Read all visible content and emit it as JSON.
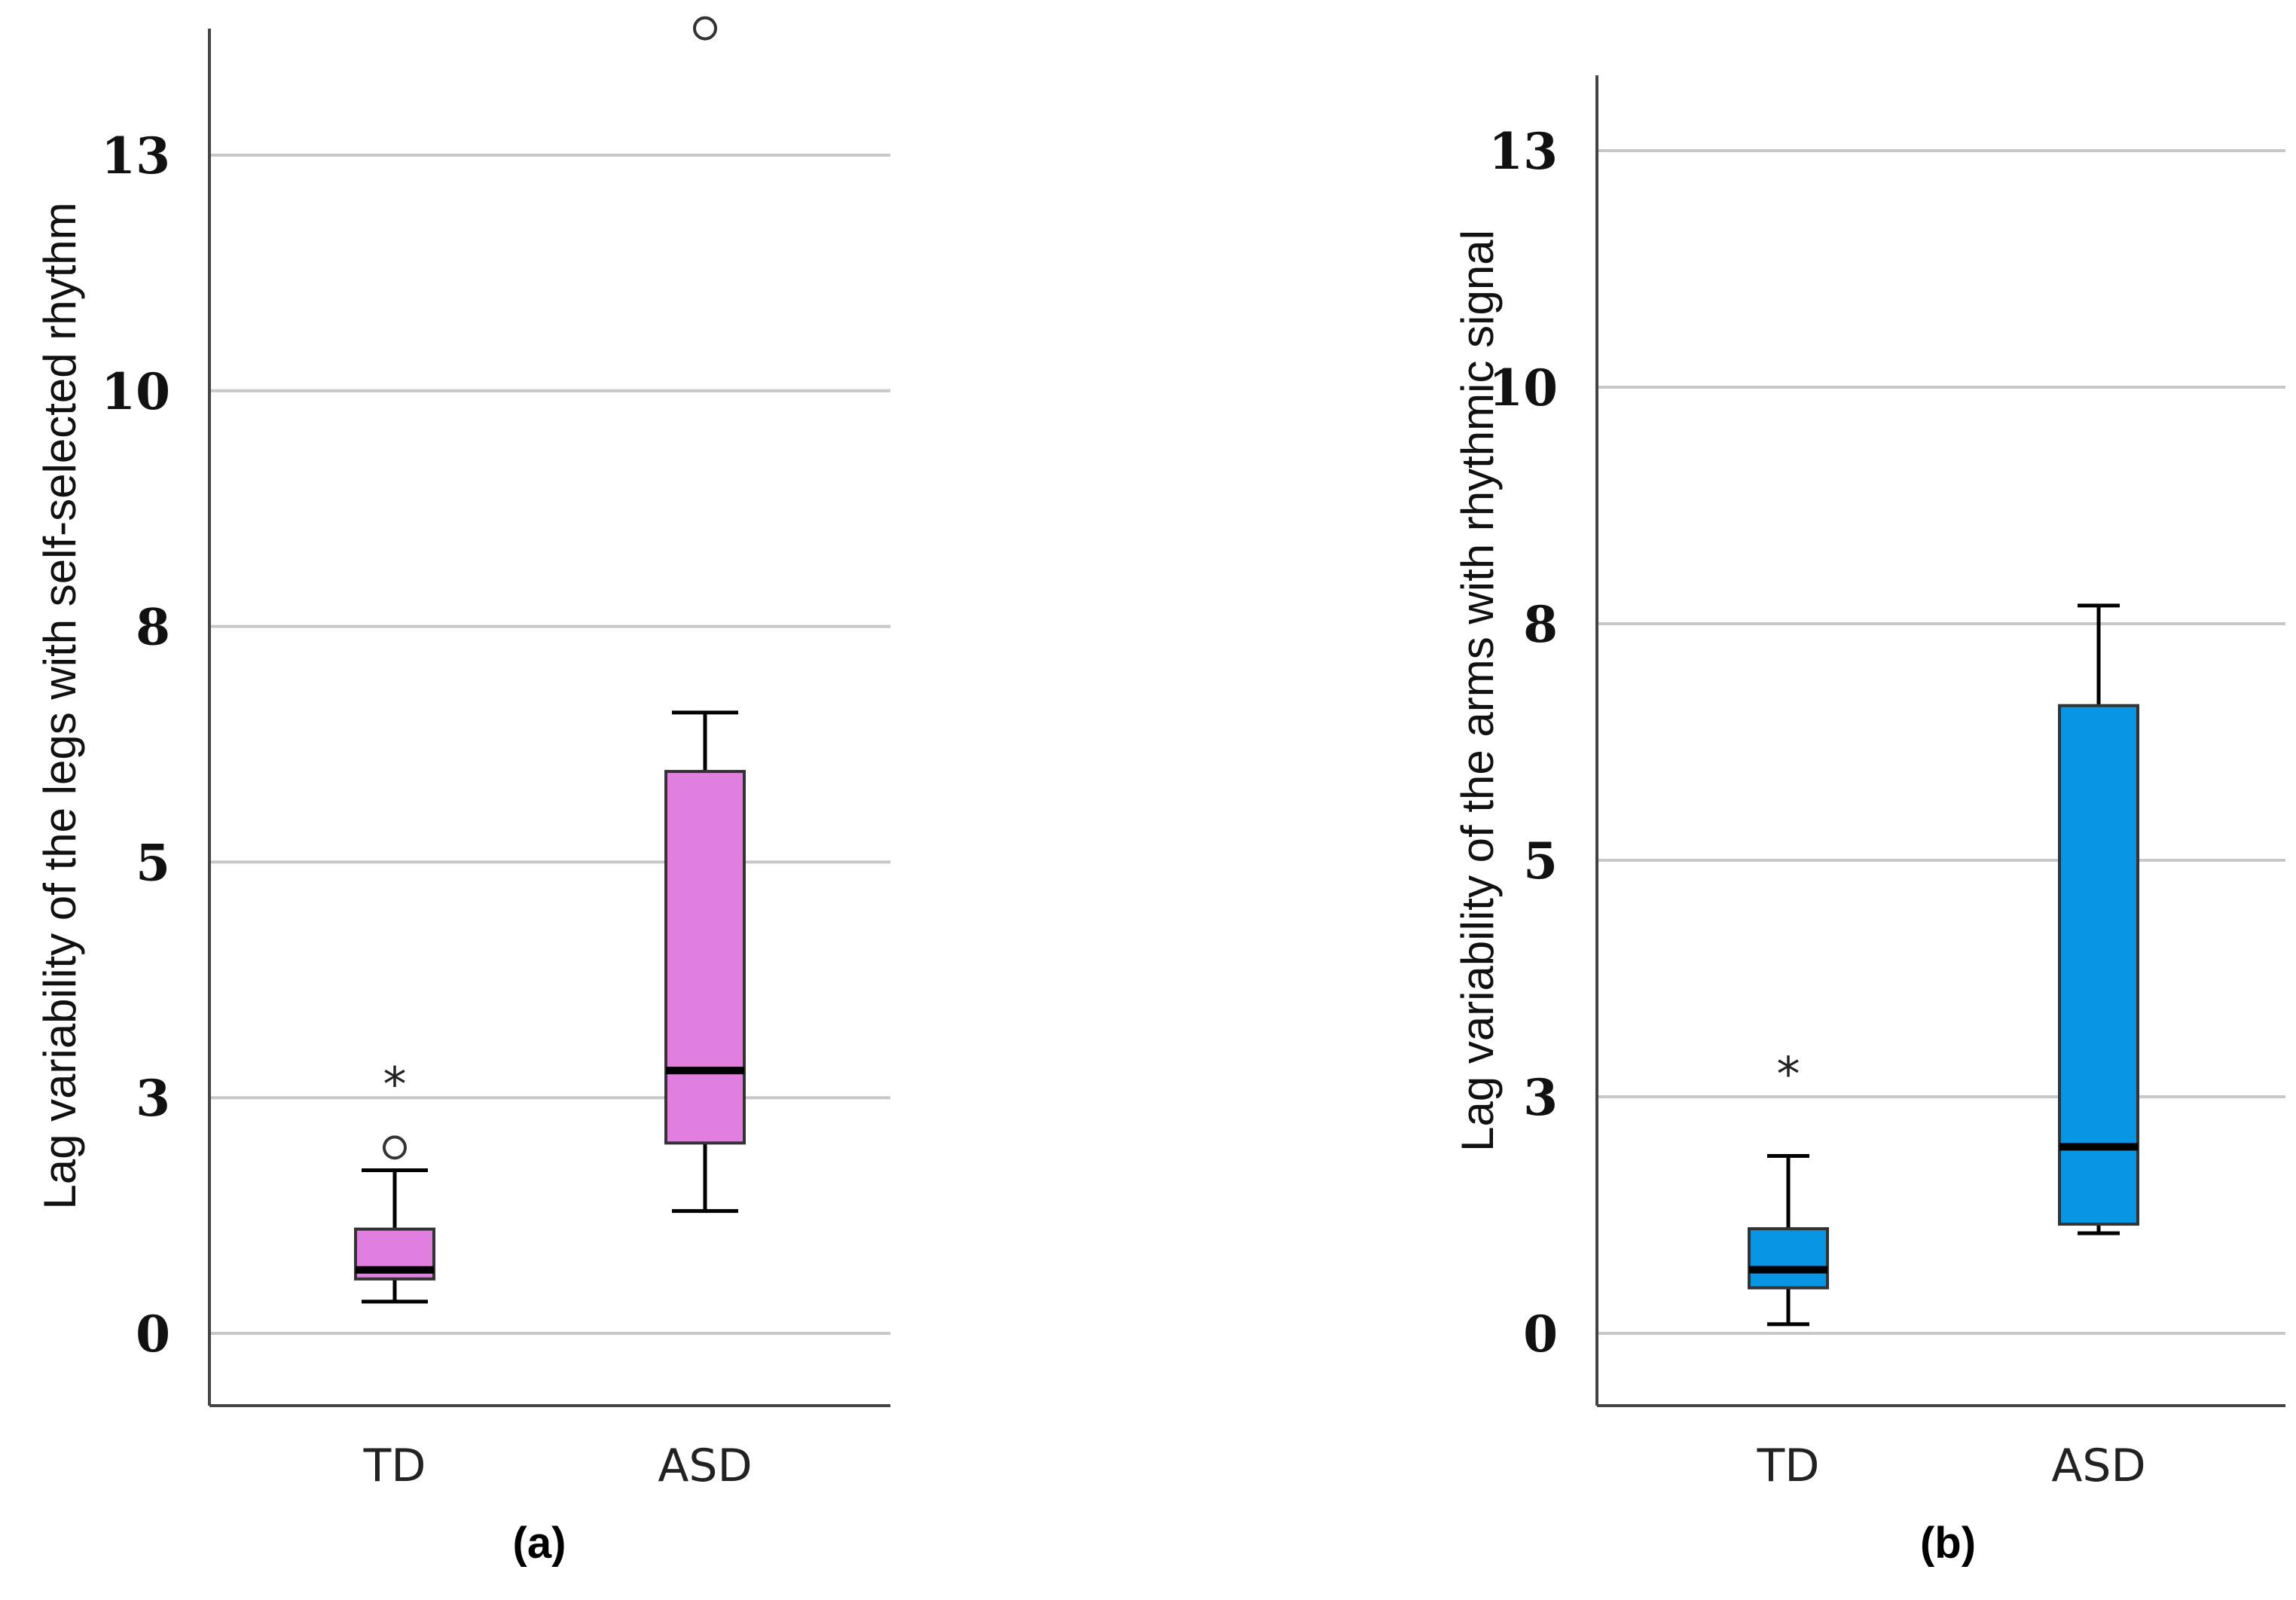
{
  "chart_data": [
    {
      "type": "boxplot",
      "panel_label": "(a)",
      "ylabel": "Lag variability of the legs with self-selected rhythm",
      "y_ticks": [
        "0",
        "3",
        "5",
        "8",
        "10",
        "13"
      ],
      "ylim": [
        -0.8,
        14.5
      ],
      "grid": true,
      "box_color": "#e07fe0",
      "categories": [
        "TD",
        "ASD"
      ],
      "boxes": [
        {
          "category": "TD",
          "whisker_low": 0.35,
          "q1": 0.6,
          "median": 0.7,
          "q3": 1.15,
          "whisker_high": 1.8,
          "outliers": [
            2.05
          ],
          "extremes": [
            2.85
          ]
        },
        {
          "category": "ASD",
          "whisker_low": 1.35,
          "q1": 2.1,
          "median": 2.9,
          "q3": 6.2,
          "whisker_high": 6.85,
          "outliers": [
            14.4
          ],
          "extremes": []
        }
      ]
    },
    {
      "type": "boxplot",
      "panel_label": "(b)",
      "ylabel": "Lag variability of the arms with rhythmic signal",
      "y_ticks": [
        "0",
        "3",
        "5",
        "8",
        "10",
        "13"
      ],
      "ylim": [
        -0.8,
        14.5
      ],
      "grid": true,
      "box_color": "#0895e3",
      "categories": [
        "TD",
        "ASD"
      ],
      "boxes": [
        {
          "category": "TD",
          "whisker_low": 0.1,
          "q1": 0.5,
          "median": 0.7,
          "q3": 1.15,
          "whisker_high": 1.95,
          "outliers": [],
          "extremes": [
            2.95
          ]
        },
        {
          "category": "ASD",
          "whisker_low": 1.1,
          "q1": 1.2,
          "median": 2.05,
          "q3": 6.9,
          "whisker_high": 8.0,
          "outliers": [],
          "extremes": []
        }
      ]
    }
  ]
}
